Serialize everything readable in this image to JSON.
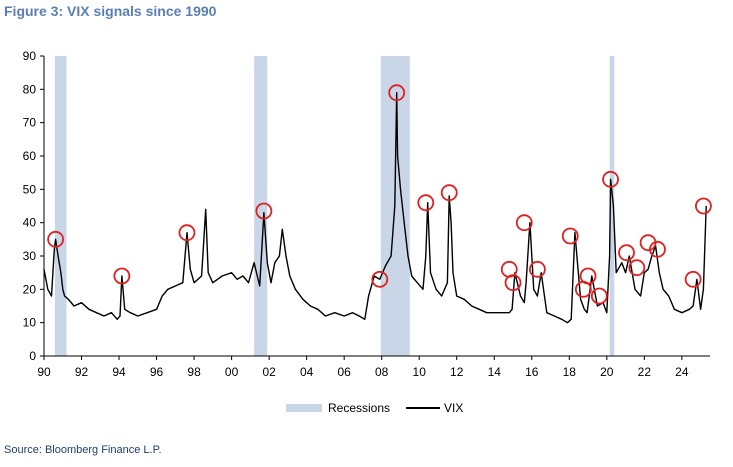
{
  "figure": {
    "title": "Figure 3: VIX signals since 1990",
    "source": "Source: Bloomberg Finance L.P."
  },
  "chart_data": {
    "type": "line",
    "title": "Figure 3: VIX signals since 1990",
    "xlabel": "",
    "ylabel": "",
    "xlim": [
      1990,
      2025.5
    ],
    "ylim": [
      0,
      90
    ],
    "yticks": [
      0,
      10,
      20,
      30,
      40,
      50,
      60,
      70,
      80,
      90
    ],
    "xticks": [
      {
        "year": 1990,
        "label": "90"
      },
      {
        "year": 1992,
        "label": "92"
      },
      {
        "year": 1994,
        "label": "94"
      },
      {
        "year": 1996,
        "label": "96"
      },
      {
        "year": 1998,
        "label": "98"
      },
      {
        "year": 2000,
        "label": "00"
      },
      {
        "year": 2002,
        "label": "02"
      },
      {
        "year": 2004,
        "label": "04"
      },
      {
        "year": 2006,
        "label": "06"
      },
      {
        "year": 2008,
        "label": "08"
      },
      {
        "year": 2010,
        "label": "10"
      },
      {
        "year": 2012,
        "label": "12"
      },
      {
        "year": 2014,
        "label": "14"
      },
      {
        "year": 2016,
        "label": "16"
      },
      {
        "year": 2018,
        "label": "18"
      },
      {
        "year": 2020,
        "label": "20"
      },
      {
        "year": 2022,
        "label": "22"
      },
      {
        "year": 2024,
        "label": "24"
      }
    ],
    "grid": false,
    "legend": {
      "position": "bottom-center",
      "recessions_label": "Recessions",
      "vix_label": "VIX"
    },
    "colors": {
      "vix": "#000000",
      "recession": "#c9d6e8",
      "signal": "#e02020",
      "title": "#5b7fb5",
      "source": "#1f3d6b"
    },
    "recessions": [
      {
        "start": 1990.58,
        "end": 1991.2
      },
      {
        "start": 2001.2,
        "end": 2001.9
      },
      {
        "start": 2007.95,
        "end": 2009.5
      },
      {
        "start": 2020.15,
        "end": 2020.4
      }
    ],
    "series": [
      {
        "name": "VIX",
        "x": [
          1990.0,
          1990.2,
          1990.4,
          1990.55,
          1990.62,
          1990.75,
          1990.9,
          1991.0,
          1991.1,
          1991.3,
          1991.6,
          1992.0,
          1992.4,
          1992.8,
          1993.2,
          1993.6,
          1993.9,
          1994.05,
          1994.15,
          1994.3,
          1994.6,
          1995.0,
          1995.5,
          1996.0,
          1996.3,
          1996.6,
          1997.0,
          1997.4,
          1997.62,
          1997.8,
          1998.0,
          1998.4,
          1998.62,
          1998.75,
          1999.0,
          1999.5,
          2000.0,
          2000.3,
          2000.6,
          2000.9,
          2001.2,
          2001.5,
          2001.72,
          2001.9,
          2002.1,
          2002.3,
          2002.55,
          2002.7,
          2002.9,
          2003.1,
          2003.4,
          2003.8,
          2004.2,
          2004.6,
          2005.0,
          2005.5,
          2006.0,
          2006.45,
          2006.8,
          2007.1,
          2007.3,
          2007.6,
          2007.9,
          2008.2,
          2008.5,
          2008.7,
          2008.8,
          2008.85,
          2009.0,
          2009.2,
          2009.4,
          2009.6,
          2009.9,
          2010.2,
          2010.35,
          2010.45,
          2010.6,
          2010.9,
          2011.2,
          2011.5,
          2011.6,
          2011.7,
          2011.8,
          2012.0,
          2012.4,
          2012.8,
          2013.2,
          2013.6,
          2014.0,
          2014.5,
          2014.8,
          2014.95,
          2015.1,
          2015.4,
          2015.6,
          2015.7,
          2015.9,
          2016.1,
          2016.3,
          2016.5,
          2016.8,
          2017.2,
          2017.6,
          2017.9,
          2018.1,
          2018.3,
          2018.6,
          2018.8,
          2018.95,
          2019.2,
          2019.5,
          2019.8,
          2020.0,
          2020.15,
          2020.2,
          2020.35,
          2020.5,
          2020.8,
          2021.0,
          2021.2,
          2021.5,
          2021.8,
          2022.0,
          2022.2,
          2022.4,
          2022.6,
          2022.8,
          2023.0,
          2023.3,
          2023.6,
          2024.0,
          2024.4,
          2024.6,
          2024.8,
          2025.0,
          2025.15,
          2025.3
        ],
        "values": [
          26,
          20,
          18,
          32,
          35,
          30,
          25,
          20,
          18,
          17,
          15,
          16,
          14,
          13,
          12,
          13,
          11,
          12,
          24,
          14,
          13,
          12,
          13,
          14,
          18,
          20,
          21,
          22,
          37,
          26,
          22,
          24,
          44,
          25,
          22,
          24,
          25,
          23,
          24,
          22,
          28,
          21,
          43,
          28,
          22,
          28,
          30,
          38,
          30,
          24,
          20,
          17,
          15,
          14,
          12,
          13,
          12,
          13,
          12,
          11,
          18,
          24,
          23,
          27,
          30,
          45,
          79,
          60,
          50,
          40,
          30,
          24,
          22,
          20,
          30,
          46,
          25,
          20,
          18,
          22,
          48,
          40,
          25,
          18,
          17,
          15,
          14,
          13,
          13,
          13,
          13,
          14,
          25,
          18,
          16,
          22,
          40,
          20,
          18,
          25,
          13,
          12,
          11,
          10,
          11,
          37,
          17,
          14,
          13,
          24,
          15,
          16,
          13,
          30,
          53,
          45,
          25,
          28,
          25,
          30,
          20,
          18,
          25,
          26,
          30,
          33,
          25,
          20,
          18,
          14,
          13,
          14,
          15,
          23,
          14,
          20,
          45
        ]
      }
    ],
    "signals": [
      {
        "x": 1990.62,
        "y": 35
      },
      {
        "x": 1994.15,
        "y": 24
      },
      {
        "x": 1997.62,
        "y": 37
      },
      {
        "x": 2001.72,
        "y": 43.5
      },
      {
        "x": 2007.9,
        "y": 23
      },
      {
        "x": 2008.8,
        "y": 79
      },
      {
        "x": 2010.35,
        "y": 46
      },
      {
        "x": 2011.6,
        "y": 49
      },
      {
        "x": 2014.8,
        "y": 26
      },
      {
        "x": 2015.0,
        "y": 22
      },
      {
        "x": 2015.6,
        "y": 40
      },
      {
        "x": 2016.3,
        "y": 26
      },
      {
        "x": 2018.05,
        "y": 36
      },
      {
        "x": 2018.75,
        "y": 20
      },
      {
        "x": 2019.0,
        "y": 24
      },
      {
        "x": 2019.6,
        "y": 18
      },
      {
        "x": 2020.2,
        "y": 53
      },
      {
        "x": 2021.05,
        "y": 31
      },
      {
        "x": 2021.6,
        "y": 26.5
      },
      {
        "x": 2022.2,
        "y": 34
      },
      {
        "x": 2022.7,
        "y": 32
      },
      {
        "x": 2024.6,
        "y": 23
      },
      {
        "x": 2025.15,
        "y": 45
      }
    ]
  }
}
